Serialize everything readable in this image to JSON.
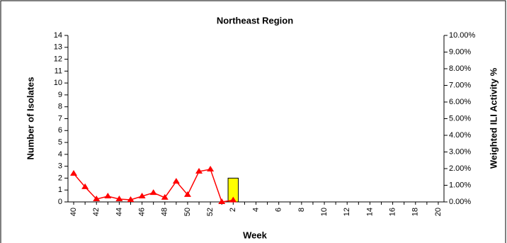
{
  "chart_data": {
    "type": "bar",
    "title": "Northeast Region",
    "x_label": "Week",
    "y_label": "Number of Isolates",
    "y2_label": "Weighted ILI Activity %",
    "categories": [
      "40",
      null,
      "42",
      null,
      "44",
      null,
      "46",
      null,
      "48",
      null,
      "50",
      null,
      "52",
      null,
      "2",
      null,
      "4",
      null,
      "6",
      null,
      "8",
      null,
      "10",
      null,
      "12",
      null,
      "14",
      null,
      "16",
      null,
      "18",
      null,
      "20"
    ],
    "series": [
      {
        "name": "Number of Isolates",
        "type": "bar",
        "color": "#ffff00",
        "values": [
          0,
          0,
          0,
          0,
          0,
          0,
          0,
          0,
          0,
          0,
          0,
          0,
          0,
          0,
          2,
          0,
          0,
          0,
          0,
          0,
          0,
          0,
          0,
          0,
          0,
          0,
          0,
          0,
          0,
          0,
          0,
          0,
          0
        ]
      },
      {
        "name": "Weighted ILI Activity %",
        "type": "line",
        "axis": "y2",
        "color": "#ff0000",
        "values": [
          1.7,
          0.9,
          0.17,
          0.34,
          0.17,
          0.13,
          0.34,
          0.55,
          0.26,
          1.23,
          0.43,
          1.83,
          1.96,
          0,
          0.1,
          null,
          null,
          null,
          null,
          null,
          null,
          null,
          null,
          null,
          null,
          null,
          null,
          null,
          null,
          null,
          null,
          null,
          null
        ]
      }
    ],
    "ylim": [
      0,
      14
    ],
    "yticks": [
      0,
      1,
      2,
      3,
      4,
      5,
      6,
      7,
      8,
      9,
      10,
      11,
      12,
      13,
      14
    ],
    "y2lim": [
      0,
      10
    ],
    "y2ticks": [
      {
        "value": 0,
        "label": "0.00%"
      },
      {
        "value": 1,
        "label": "1.00%"
      },
      {
        "value": 2,
        "label": "2.00%"
      },
      {
        "value": 3,
        "label": "3.00%"
      },
      {
        "value": 4,
        "label": "4.00%"
      },
      {
        "value": 5,
        "label": "5.00%"
      },
      {
        "value": 6,
        "label": "6.00%"
      },
      {
        "value": 7,
        "label": "7.00%"
      },
      {
        "value": 8,
        "label": "8.00%"
      },
      {
        "value": 9,
        "label": "9.00%"
      },
      {
        "value": 10,
        "label": "10.00%"
      }
    ]
  }
}
